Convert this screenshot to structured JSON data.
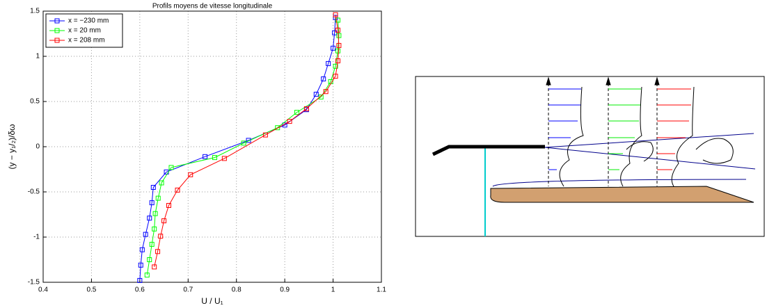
{
  "chart_data": {
    "type": "line",
    "title": "Profils moyens de vitesse longitudinale",
    "xlabel": "U / U₁",
    "ylabel": "(y − y₁/₂)/δω",
    "xlim": [
      0.4,
      1.1
    ],
    "xticks": [
      0.4,
      0.5,
      0.6,
      0.7,
      0.8,
      0.9,
      1,
      1.1
    ],
    "ylim": [
      -1.5,
      1.5
    ],
    "yticks": [
      -1.5,
      -1,
      -0.5,
      0,
      0.5,
      1,
      1.5
    ],
    "grid": true,
    "legend": "upper left",
    "series": [
      {
        "name": "x = −230 mm",
        "color": "#0000ff",
        "x": [
          0.6,
          0.602,
          0.605,
          0.612,
          0.62,
          0.625,
          0.628,
          0.655,
          0.735,
          0.825,
          0.9,
          0.945,
          0.965,
          0.98,
          0.99,
          1.0,
          1.003,
          1.005
        ],
        "y": [
          -1.48,
          -1.31,
          -1.14,
          -0.97,
          -0.79,
          -0.62,
          -0.45,
          -0.28,
          -0.11,
          0.07,
          0.24,
          0.41,
          0.58,
          0.75,
          0.92,
          1.09,
          1.26,
          1.43
        ]
      },
      {
        "name": "x = 20 mm",
        "color": "#00ff00",
        "x": [
          0.615,
          0.62,
          0.625,
          0.63,
          0.632,
          0.638,
          0.645,
          0.665,
          0.755,
          0.815,
          0.885,
          0.925,
          0.975,
          0.995,
          1.005,
          1.01,
          1.012,
          1.01
        ],
        "y": [
          -1.42,
          -1.25,
          -1.08,
          -0.91,
          -0.74,
          -0.57,
          -0.4,
          -0.23,
          -0.12,
          0.04,
          0.21,
          0.38,
          0.55,
          0.72,
          0.89,
          1.06,
          1.23,
          1.4
        ]
      },
      {
        "name": "x = 208 mm",
        "color": "#ff0000",
        "x": [
          0.63,
          0.637,
          0.643,
          0.65,
          0.66,
          0.678,
          0.705,
          0.775,
          0.86,
          0.91,
          0.945,
          0.985,
          1.005,
          1.01,
          1.012,
          1.01,
          1.005
        ],
        "y": [
          -1.33,
          -1.16,
          -0.99,
          -0.82,
          -0.65,
          -0.48,
          -0.31,
          -0.13,
          0.13,
          0.28,
          0.42,
          0.61,
          0.78,
          0.95,
          1.12,
          1.29,
          1.46
        ]
      }
    ]
  }
}
